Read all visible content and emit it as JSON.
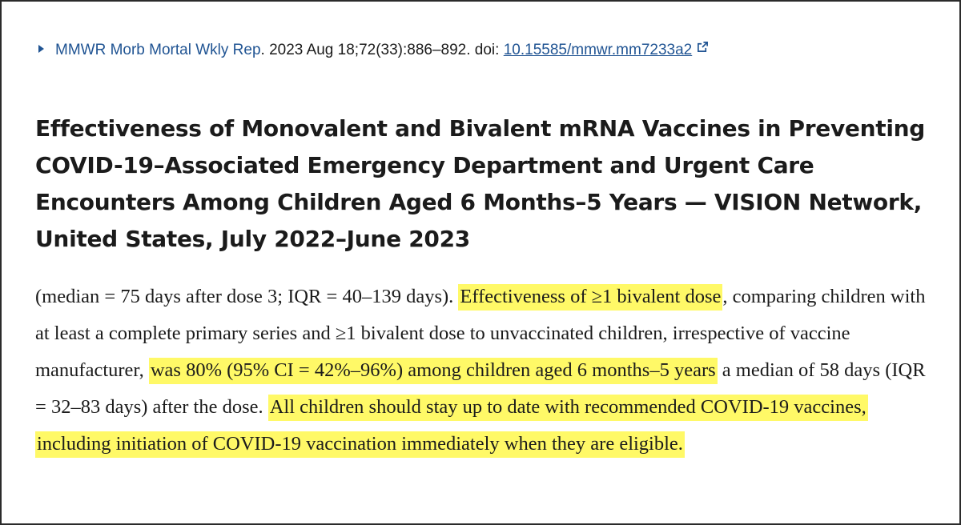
{
  "citation": {
    "journal": "MMWR Morb Mortal Wkly Rep",
    "details": ". 2023 Aug 18;72(33):886–892. doi: ",
    "doi": "10.15585/mmwr.mm7233a2",
    "external_icon": "external-link-icon"
  },
  "title": "Effectiveness of Monovalent and Bivalent mRNA Vaccines in Preventing COVID-19–Associated Emergency Department and Urgent Care Encounters Among Children Aged 6 Months–5 Years — VISION Network, United States, July 2022–June 2023",
  "body": {
    "segment_1": "(median = 75 days after dose 3; IQR = 40–139 days). ",
    "highlight_1": "Effectiveness of ≥1 bivalent dose",
    "segment_2": ", comparing children with at least a complete primary series and ≥1 bivalent dose to unvaccinated children, irrespective of vaccine manufacturer, ",
    "highlight_2": "was 80% (95% CI = 42%–96%) among children aged 6 months–5 years",
    "segment_3": " a median of 58 days (IQR = 32–83 days) after the dose. ",
    "highlight_3": "All children should stay up to date with recommended COVID-19 vaccines, including initiation of COVID-19 vaccination immediately when they are eligible."
  },
  "colors": {
    "link": "#205493",
    "highlight": "#fff73c",
    "text": "#1b1b1b"
  }
}
